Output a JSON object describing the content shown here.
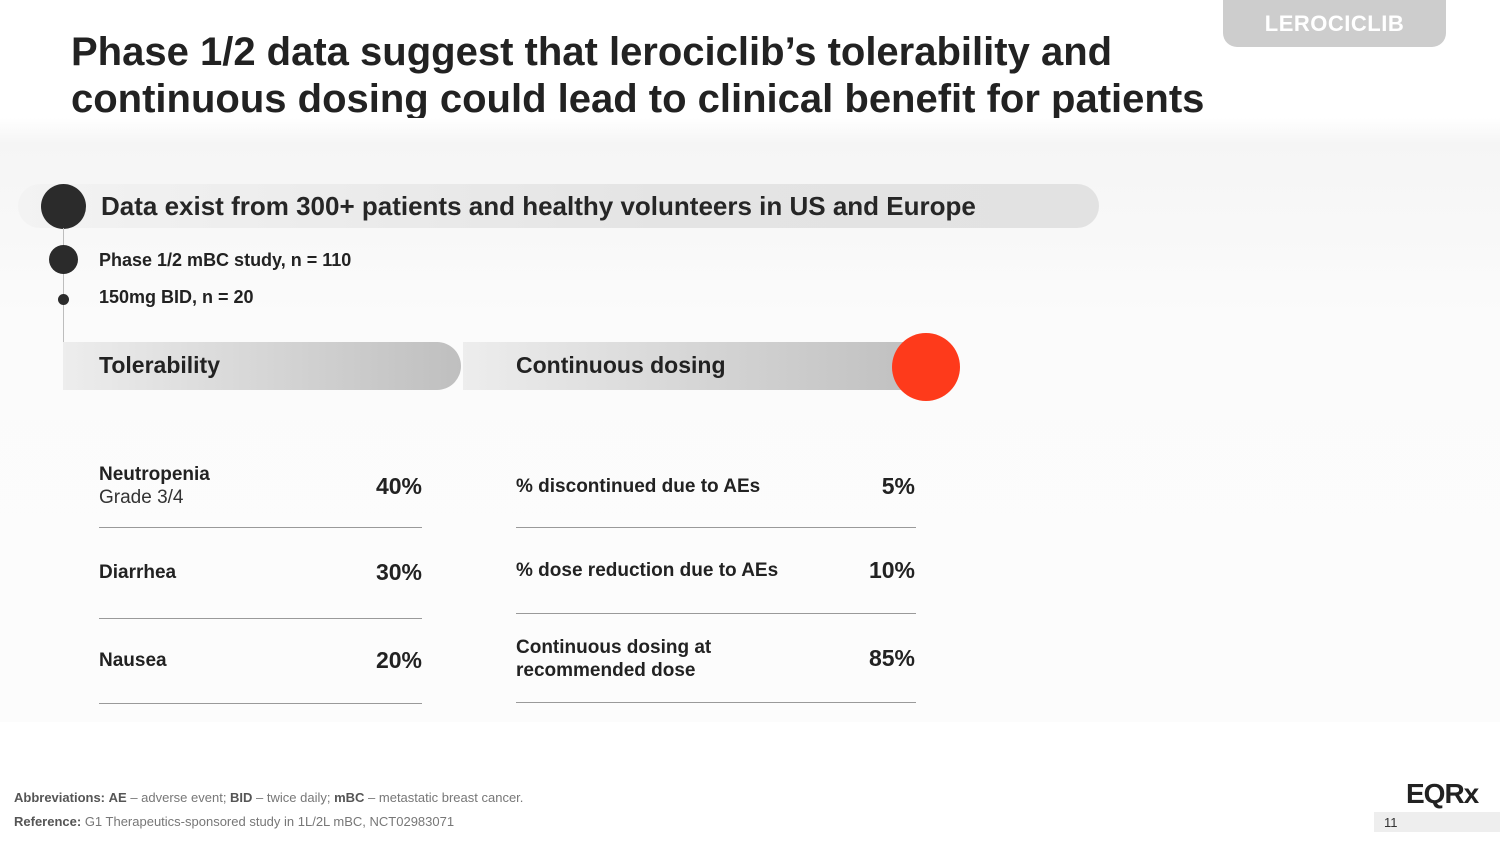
{
  "slide_tag": "LEROCICLIB",
  "title": "Phase 1/2 data suggest that lerociclib’s tolerability and continuous dosing could lead to clinical benefit for patients",
  "banner": "Data exist from 300+ patients and healthy volunteers in US and Europe",
  "study": {
    "line1": "Phase 1/2 mBC study, n = 110",
    "line2": "150mg BID, n = 20"
  },
  "tolerability": {
    "header": "Tolerability",
    "rows": [
      {
        "label": "Neutropenia",
        "sub": "Grade 3/4",
        "value": "40%"
      },
      {
        "label": "Diarrhea",
        "value": "30%"
      },
      {
        "label": "Nausea",
        "value": "20%"
      }
    ]
  },
  "continuous_dosing": {
    "header": "Continuous dosing",
    "rows": [
      {
        "label": "% discontinued due to AEs",
        "value": "5%"
      },
      {
        "label": "% dose reduction due to AEs",
        "value": "10%"
      },
      {
        "label": "Continuous dosing at recommended dose",
        "value": "85%"
      }
    ]
  },
  "footer": {
    "abbrev_label": "Abbreviations:",
    "abbrev_ae": "AE",
    "abbrev_ae_text": " – adverse event; ",
    "abbrev_bid": "BID",
    "abbrev_bid_text": " – twice daily; ",
    "abbrev_mbc": "mBC",
    "abbrev_mbc_text": " – metastatic breast cancer.",
    "reference_label": "Reference:",
    "reference_text": " G1 Therapeutics-sponsored study in 1L/2L mBC, NCT02983071",
    "logo": "EQRx",
    "page_number": "11"
  },
  "colors": {
    "accent": "#fe3a1b",
    "dark": "#2b2b2b",
    "tag_bg": "#cdcdcd"
  }
}
